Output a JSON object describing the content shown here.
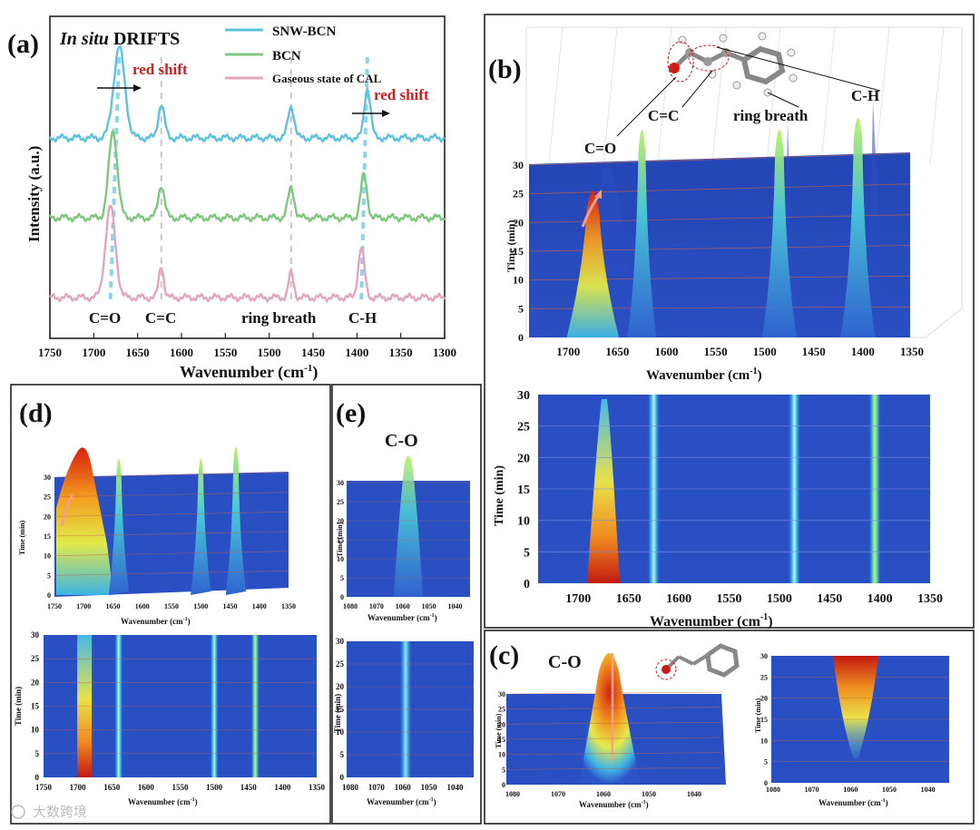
{
  "colors": {
    "snw_bcn": "#5ec2dc",
    "bcn": "#7ec77e",
    "gas": "#e3a5bd",
    "plane_dark": "#1f3caa",
    "plane_mid": "#2c55c8",
    "red_text": "#cc1f1f",
    "dash": "#c8c8c8"
  },
  "chart_data": [
    {
      "panel": "(a)",
      "type": "line",
      "title": "In situ DRIFTS",
      "title_italic_part": "In situ",
      "title_rest": " DRIFTS",
      "xlabel": "Wavenumber (cm",
      "xlabel_sup": "-1",
      "xlabel_close": ")",
      "ylabel": "Intensity (a.u.)",
      "xlim": [
        1750,
        1300
      ],
      "xticks": [
        1750,
        1700,
        1650,
        1600,
        1550,
        1500,
        1450,
        1400,
        1350,
        1300
      ],
      "series": [
        {
          "name": "SNW-BCN",
          "offset": 2.0,
          "peaks": [
            {
              "x": 1671,
              "h": 1.0,
              "w": 9
            },
            {
              "x": 1623,
              "h": 0.37,
              "w": 5
            },
            {
              "x": 1475,
              "h": 0.35,
              "w": 5
            },
            {
              "x": 1388,
              "h": 0.55,
              "w": 5
            }
          ]
        },
        {
          "name": "BCN",
          "offset": 1.0,
          "peaks": [
            {
              "x": 1678,
              "h": 0.95,
              "w": 7
            },
            {
              "x": 1623,
              "h": 0.36,
              "w": 5
            },
            {
              "x": 1475,
              "h": 0.33,
              "w": 5
            },
            {
              "x": 1392,
              "h": 0.47,
              "w": 5
            }
          ]
        },
        {
          "name": "Gaseous state of CAL",
          "offset": 0.0,
          "peaks": [
            {
              "x": 1681,
              "h": 1.0,
              "w": 8
            },
            {
              "x": 1623,
              "h": 0.35,
              "w": 4
            },
            {
              "x": 1475,
              "h": 0.27,
              "w": 4
            },
            {
              "x": 1395,
              "h": 0.55,
              "w": 5
            }
          ]
        }
      ],
      "annotations": [
        "red shift",
        "red shift"
      ],
      "peak_labels": [
        "C=O",
        "C=C",
        "ring breath",
        "C-H"
      ]
    },
    {
      "panel": "(b)",
      "type": "heatmap",
      "xlabel": "Wavenumber (cm",
      "xlabel_sup": "-1",
      "xlabel_close": ")",
      "ylabel": "Time (min)",
      "xticks_3d": [
        1700,
        1650,
        1600,
        1550,
        1500,
        1450,
        1400,
        1350
      ],
      "xticks_map": [
        1700,
        1650,
        1600,
        1550,
        1500,
        1450,
        1400,
        1350
      ],
      "yticks": [
        0,
        5,
        10,
        15,
        20,
        25,
        30
      ],
      "xlim": [
        1750,
        1350
      ],
      "ylim": [
        0,
        30
      ],
      "bands": [
        1675,
        1625,
        1485,
        1405
      ],
      "peak_labels": [
        "C=O",
        "C=C",
        "ring breath",
        "C-H"
      ]
    },
    {
      "panel": "(c)",
      "type": "heatmap",
      "label": "C-O",
      "xlabel": "Wavenumber (cm",
      "xlabel_sup": "-1",
      "xlabel_close": ")",
      "ylabel": "Time (min)",
      "xticks": [
        1080,
        1070,
        1060,
        1050,
        1040
      ],
      "yticks": [
        0,
        5,
        10,
        15,
        20,
        25,
        30
      ],
      "ylim": [
        0,
        30
      ],
      "band": 1060
    },
    {
      "panel": "(d)",
      "type": "heatmap",
      "xlabel": "Wavenumber (cm",
      "xlabel_sup": "-1",
      "xlabel_close": ")",
      "ylabel": "Time (min)",
      "xticks_3d": [
        1750,
        1700,
        1650,
        1600,
        1550,
        1500,
        1450,
        1400,
        1350
      ],
      "xticks_map": [
        1750,
        1700,
        1650,
        1600,
        1550,
        1500,
        1450,
        1400,
        1350
      ],
      "yticks": [
        0,
        5,
        10,
        15,
        20,
        25,
        30
      ],
      "xlim": [
        1750,
        1350
      ],
      "ylim": [
        0,
        30
      ],
      "bands": [
        1690,
        1640,
        1500,
        1440
      ]
    },
    {
      "panel": "(e)",
      "type": "heatmap",
      "label": "C-O",
      "xlabel": "Wavenumber (cm",
      "xlabel_sup": "-1",
      "xlabel_close": ")",
      "ylabel": "Time (min)",
      "xticks": [
        1080,
        1070,
        1060,
        1050,
        1040
      ],
      "yticks": [
        0,
        5,
        10,
        15,
        20,
        25,
        30
      ],
      "ylim": [
        0,
        30
      ],
      "band": 1060
    }
  ],
  "watermark": "大数跨境"
}
